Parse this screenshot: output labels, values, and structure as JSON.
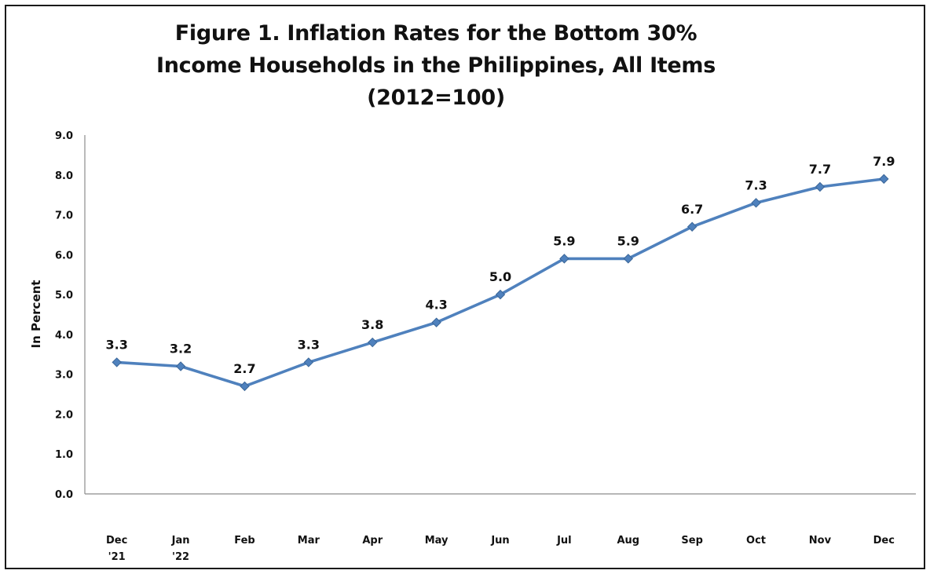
{
  "chart_data": {
    "type": "line",
    "title_lines": [
      "Figure 1. Inflation Rates for the Bottom 30%",
      "Income Households in the Philippines, All Items",
      "(2012=100)"
    ],
    "xlabel": "",
    "ylabel": "In Percent",
    "categories": [
      [
        "Dec",
        "'21"
      ],
      [
        "Jan",
        "'22"
      ],
      [
        "Feb"
      ],
      [
        "Mar"
      ],
      [
        "Apr"
      ],
      [
        "May"
      ],
      [
        "Jun"
      ],
      [
        "Jul"
      ],
      [
        "Aug"
      ],
      [
        "Sep"
      ],
      [
        "Oct"
      ],
      [
        "Nov"
      ],
      [
        "Dec"
      ]
    ],
    "series": [
      {
        "values": [
          3.3,
          3.2,
          2.7,
          3.3,
          3.8,
          4.3,
          5.0,
          5.9,
          5.9,
          6.7,
          7.3,
          7.7,
          7.9
        ],
        "data_labels": [
          "3.3",
          "3.2",
          "2.7",
          "3.3",
          "3.8",
          "4.3",
          "5.0",
          "5.9",
          "5.9",
          "6.7",
          "7.3",
          "7.7",
          "7.9"
        ],
        "color": "#4F81BD"
      }
    ],
    "ylim": [
      0,
      9
    ],
    "yticks": [
      "0.0",
      "1.0",
      "2.0",
      "3.0",
      "4.0",
      "5.0",
      "6.0",
      "7.0",
      "8.0",
      "9.0"
    ],
    "grid": false,
    "legend": "none",
    "marker": "diamond"
  }
}
